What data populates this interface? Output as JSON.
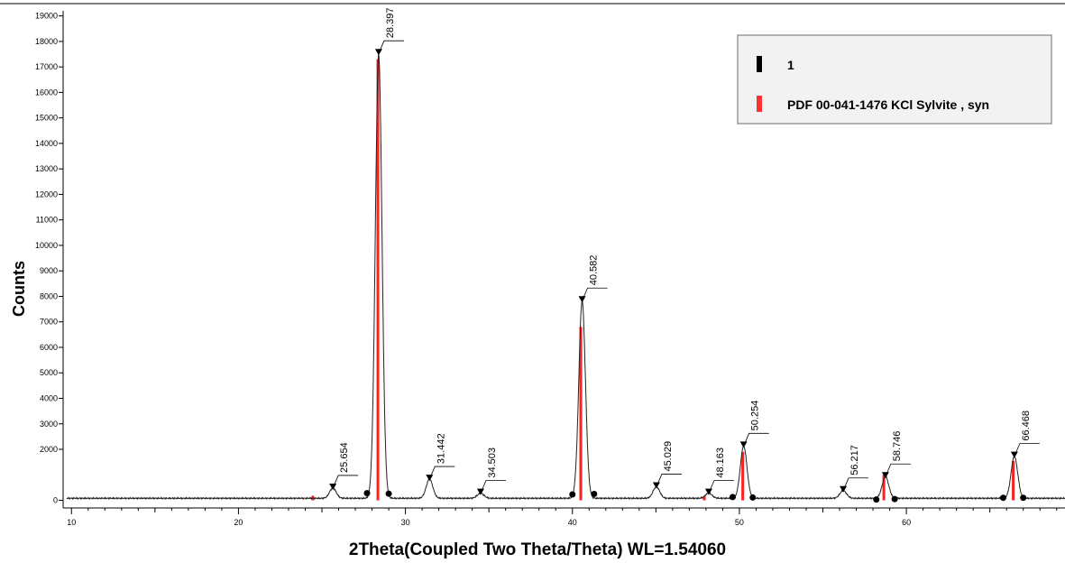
{
  "chart_data": {
    "type": "line",
    "title": "",
    "xlabel": "2Theta(Coupled Two Theta/Theta) WL=1.54060",
    "ylabel": "Counts",
    "xlim": [
      9.5,
      69.5
    ],
    "ylim": [
      -300,
      19200
    ],
    "x_ticks": [
      10,
      20,
      30,
      40,
      50,
      60
    ],
    "y_ticks": [
      0,
      2000,
      3000,
      4000,
      5000,
      6000,
      7000,
      8000,
      9000,
      10000,
      11000,
      12000,
      13000,
      14000,
      15000,
      16000,
      17000,
      18000,
      19000
    ],
    "grid": false,
    "legend_position": "top-right",
    "legend": [
      {
        "label": "1",
        "color": "#000000"
      },
      {
        "label": "PDF 00-041-1476 KCl Sylvite , syn",
        "color": "#ff3030"
      }
    ],
    "baseline": 80,
    "peak_width": 0.28,
    "measured_peaks": [
      {
        "x": 25.654,
        "y": 400,
        "label": "25.654"
      },
      {
        "x": 28.397,
        "y": 17450,
        "label": "28.397"
      },
      {
        "x": 31.442,
        "y": 750,
        "label": "31.442"
      },
      {
        "x": 34.503,
        "y": 200,
        "label": "34.503"
      },
      {
        "x": 40.582,
        "y": 7750,
        "label": "40.582"
      },
      {
        "x": 45.029,
        "y": 450,
        "label": "45.029"
      },
      {
        "x": 48.163,
        "y": 200,
        "label": "48.163"
      },
      {
        "x": 50.254,
        "y": 2050,
        "label": "50.254"
      },
      {
        "x": 56.217,
        "y": 300,
        "label": "56.217"
      },
      {
        "x": 58.746,
        "y": 850,
        "label": "58.746"
      },
      {
        "x": 66.468,
        "y": 1650,
        "label": "66.468"
      }
    ],
    "reference_lines": [
      {
        "x": 24.45,
        "y": 180
      },
      {
        "x": 28.35,
        "y": 17300
      },
      {
        "x": 40.5,
        "y": 6800
      },
      {
        "x": 47.9,
        "y": 150
      },
      {
        "x": 50.2,
        "y": 1900
      },
      {
        "x": 58.65,
        "y": 1000
      },
      {
        "x": 66.4,
        "y": 1550
      }
    ],
    "background_points": [
      {
        "x": 27.7,
        "y": 280
      },
      {
        "x": 29.0,
        "y": 260
      },
      {
        "x": 40.0,
        "y": 230
      },
      {
        "x": 41.3,
        "y": 250
      },
      {
        "x": 49.6,
        "y": 130
      },
      {
        "x": 50.8,
        "y": 110
      },
      {
        "x": 58.2,
        "y": 30
      },
      {
        "x": 59.3,
        "y": 50
      },
      {
        "x": 65.8,
        "y": 100
      },
      {
        "x": 67.0,
        "y": 100
      }
    ]
  }
}
